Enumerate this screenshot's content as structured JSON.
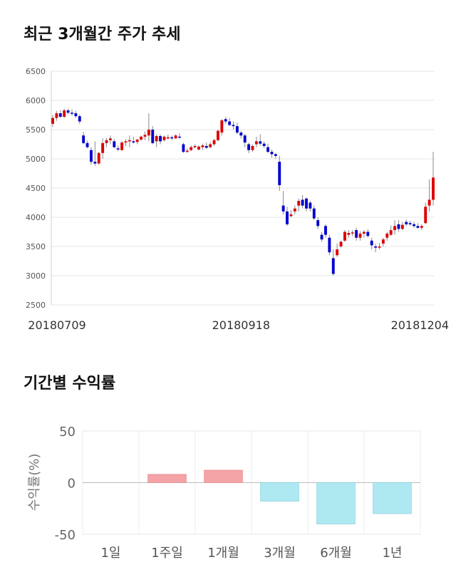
{
  "sections": {
    "price_title": "최근 3개월간 주가 추세",
    "return_title": "기간별 수익률"
  },
  "chart_data": [
    {
      "type": "candlestick",
      "title": "최근 3개월간 주가 추세",
      "ylim": [
        2500,
        6500
      ],
      "yticks": [
        2500,
        3000,
        3500,
        4000,
        4500,
        5000,
        5500,
        6000,
        6500
      ],
      "xtick_labels": [
        "20180709",
        "20180918",
        "20181204"
      ],
      "xtick_index": [
        0,
        49,
        99
      ],
      "up_color": "#dd0000",
      "down_color": "#0000cc",
      "grid": true,
      "candles": [
        [
          5600,
          5750,
          5550,
          5700
        ],
        [
          5700,
          5820,
          5650,
          5780
        ],
        [
          5780,
          5830,
          5700,
          5720
        ],
        [
          5720,
          5860,
          5700,
          5830
        ],
        [
          5830,
          5860,
          5760,
          5790
        ],
        [
          5790,
          5850,
          5740,
          5780
        ],
        [
          5780,
          5820,
          5700,
          5730
        ],
        [
          5730,
          5760,
          5600,
          5640
        ],
        [
          5400,
          5460,
          5250,
          5270
        ],
        [
          5270,
          5310,
          5180,
          5200
        ],
        [
          5150,
          5200,
          4900,
          4950
        ],
        [
          4950,
          5300,
          4880,
          4920
        ],
        [
          4920,
          5120,
          4900,
          5100
        ],
        [
          5100,
          5350,
          5000,
          5270
        ],
        [
          5270,
          5360,
          5200,
          5320
        ],
        [
          5320,
          5400,
          5250,
          5350
        ],
        [
          5300,
          5340,
          5180,
          5200
        ],
        [
          5180,
          5230,
          5130,
          5160
        ],
        [
          5150,
          5300,
          5140,
          5280
        ],
        [
          5280,
          5340,
          5220,
          5300
        ],
        [
          5300,
          5400,
          5200,
          5320
        ],
        [
          5300,
          5380,
          5260,
          5280
        ],
        [
          5290,
          5340,
          5250,
          5330
        ],
        [
          5330,
          5400,
          5310,
          5380
        ],
        [
          5380,
          5470,
          5320,
          5410
        ],
        [
          5400,
          5780,
          5300,
          5500
        ],
        [
          5500,
          5560,
          5250,
          5270
        ],
        [
          5300,
          5420,
          5200,
          5390
        ],
        [
          5390,
          5420,
          5250,
          5300
        ],
        [
          5320,
          5400,
          5300,
          5380
        ],
        [
          5350,
          5420,
          5330,
          5370
        ],
        [
          5370,
          5400,
          5320,
          5350
        ],
        [
          5350,
          5420,
          5340,
          5400
        ],
        [
          5380,
          5440,
          5350,
          5370
        ],
        [
          5250,
          5280,
          5100,
          5120
        ],
        [
          5120,
          5180,
          5100,
          5140
        ],
        [
          5150,
          5230,
          5130,
          5200
        ],
        [
          5200,
          5250,
          5180,
          5220
        ],
        [
          5160,
          5230,
          5140,
          5210
        ],
        [
          5200,
          5260,
          5150,
          5230
        ],
        [
          5220,
          5280,
          5170,
          5190
        ],
        [
          5200,
          5290,
          5180,
          5250
        ],
        [
          5250,
          5340,
          5220,
          5320
        ],
        [
          5320,
          5500,
          5300,
          5480
        ],
        [
          5450,
          5680,
          5400,
          5660
        ],
        [
          5680,
          5720,
          5600,
          5640
        ],
        [
          5640,
          5700,
          5560,
          5580
        ],
        [
          5580,
          5640,
          5500,
          5560
        ],
        [
          5560,
          5620,
          5420,
          5450
        ],
        [
          5450,
          5480,
          5350,
          5400
        ],
        [
          5400,
          5430,
          5200,
          5280
        ],
        [
          5250,
          5280,
          5100,
          5150
        ],
        [
          5150,
          5250,
          5120,
          5220
        ],
        [
          5250,
          5380,
          5200,
          5300
        ],
        [
          5300,
          5420,
          5230,
          5260
        ],
        [
          5260,
          5300,
          5180,
          5220
        ],
        [
          5200,
          5260,
          5100,
          5120
        ],
        [
          5120,
          5160,
          5020,
          5080
        ],
        [
          5080,
          5100,
          5000,
          5050
        ],
        [
          4950,
          5050,
          4450,
          4550
        ],
        [
          4200,
          4450,
          4050,
          4100
        ],
        [
          4100,
          4180,
          3850,
          3880
        ],
        [
          4020,
          4120,
          4000,
          4050
        ],
        [
          4100,
          4200,
          4050,
          4150
        ],
        [
          4200,
          4320,
          4100,
          4280
        ],
        [
          4300,
          4380,
          4150,
          4200
        ],
        [
          4320,
          4340,
          4100,
          4150
        ],
        [
          4250,
          4280,
          4100,
          4150
        ],
        [
          4150,
          4200,
          3950,
          3980
        ],
        [
          3950,
          4000,
          3800,
          3850
        ],
        [
          3700,
          3750,
          3580,
          3620
        ],
        [
          3850,
          3880,
          3650,
          3700
        ],
        [
          3650,
          3700,
          3350,
          3400
        ],
        [
          3300,
          3450,
          3000,
          3030
        ],
        [
          3350,
          3550,
          3320,
          3450
        ],
        [
          3500,
          3600,
          3480,
          3580
        ],
        [
          3600,
          3780,
          3580,
          3750
        ],
        [
          3700,
          3780,
          3650,
          3730
        ],
        [
          3730,
          3780,
          3680,
          3740
        ],
        [
          3780,
          3820,
          3600,
          3650
        ],
        [
          3650,
          3760,
          3600,
          3720
        ],
        [
          3720,
          3780,
          3650,
          3750
        ],
        [
          3750,
          3800,
          3650,
          3680
        ],
        [
          3600,
          3650,
          3450,
          3520
        ],
        [
          3500,
          3550,
          3400,
          3480
        ],
        [
          3480,
          3560,
          3450,
          3500
        ],
        [
          3550,
          3650,
          3500,
          3620
        ],
        [
          3650,
          3750,
          3600,
          3720
        ],
        [
          3700,
          3860,
          3680,
          3780
        ],
        [
          3780,
          3950,
          3700,
          3850
        ],
        [
          3880,
          3950,
          3750,
          3800
        ],
        [
          3800,
          3920,
          3780,
          3870
        ],
        [
          3920,
          3960,
          3850,
          3880
        ],
        [
          3900,
          3940,
          3850,
          3880
        ],
        [
          3880,
          3920,
          3820,
          3850
        ],
        [
          3850,
          3900,
          3800,
          3820
        ],
        [
          3820,
          3880,
          3780,
          3850
        ],
        [
          3900,
          4250,
          3880,
          4180
        ],
        [
          4200,
          4650,
          4100,
          4300
        ],
        [
          4300,
          5120,
          4200,
          4680
        ]
      ]
    },
    {
      "type": "bar",
      "title": "기간별 수익률",
      "ylabel": "수익률(%)",
      "ylim": [
        -50,
        50
      ],
      "yticks": [
        50,
        0,
        -50
      ],
      "categories": [
        "1일",
        "1주일",
        "1개월",
        "3개월",
        "6개월",
        "1년"
      ],
      "values": [
        0,
        8,
        12,
        -18,
        -40,
        -30
      ],
      "positive_color": "#f4a3a6",
      "negative_color": "#aee9f2"
    }
  ]
}
